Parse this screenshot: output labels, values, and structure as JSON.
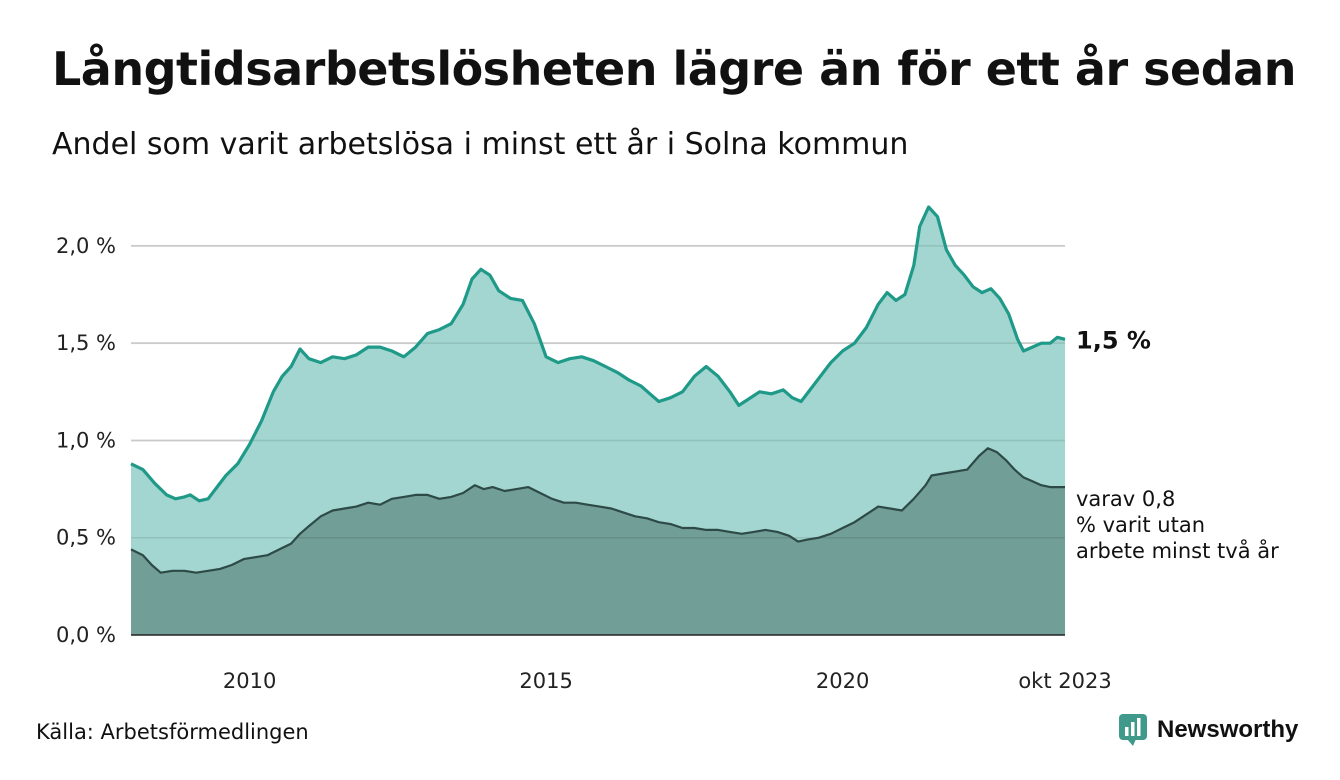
{
  "header": {
    "title": "Långtidsarbetslösheten lägre än för ett år sedan",
    "subtitle": "Andel som varit arbetslösa i minst ett år i Solna kommun"
  },
  "chart_data": {
    "type": "area",
    "title": "Långtidsarbetslösheten lägre än för ett år sedan",
    "subtitle": "Andel som varit arbetslösa i minst ett år i Solna kommun",
    "xlabel": "",
    "ylabel": "",
    "x_ticks": [
      {
        "label": "2010",
        "t": 2010.0
      },
      {
        "label": "2015",
        "t": 2015.0
      },
      {
        "label": "2020",
        "t": 2020.0
      },
      {
        "label": "okt 2023",
        "t": 2023.75
      }
    ],
    "y_ticks": [
      {
        "label": "0,0 %",
        "value": 0.0
      },
      {
        "label": "0,5 %",
        "value": 0.5
      },
      {
        "label": "1,0 %",
        "value": 1.0
      },
      {
        "label": "1,5 %",
        "value": 1.5
      },
      {
        "label": "2,0 %",
        "value": 2.0
      }
    ],
    "xlim": [
      2008.0,
      2023.75
    ],
    "ylim": [
      0,
      2.2
    ],
    "grid": true,
    "series": [
      {
        "name": "Arbetslösa minst ett år",
        "color": "#1f9988",
        "fill": "#a3d6d0",
        "end_label": "1,5 %",
        "points": [
          [
            2008.0,
            0.88
          ],
          [
            2008.2,
            0.85
          ],
          [
            2008.4,
            0.78
          ],
          [
            2008.6,
            0.72
          ],
          [
            2008.75,
            0.7
          ],
          [
            2008.9,
            0.71
          ],
          [
            2009.0,
            0.72
          ],
          [
            2009.15,
            0.69
          ],
          [
            2009.3,
            0.7
          ],
          [
            2009.45,
            0.76
          ],
          [
            2009.6,
            0.82
          ],
          [
            2009.8,
            0.88
          ],
          [
            2010.0,
            0.98
          ],
          [
            2010.2,
            1.1
          ],
          [
            2010.4,
            1.25
          ],
          [
            2010.55,
            1.33
          ],
          [
            2010.7,
            1.38
          ],
          [
            2010.85,
            1.47
          ],
          [
            2011.0,
            1.42
          ],
          [
            2011.2,
            1.4
          ],
          [
            2011.4,
            1.43
          ],
          [
            2011.6,
            1.42
          ],
          [
            2011.8,
            1.44
          ],
          [
            2012.0,
            1.48
          ],
          [
            2012.2,
            1.48
          ],
          [
            2012.4,
            1.46
          ],
          [
            2012.6,
            1.43
          ],
          [
            2012.8,
            1.48
          ],
          [
            2013.0,
            1.55
          ],
          [
            2013.2,
            1.57
          ],
          [
            2013.4,
            1.6
          ],
          [
            2013.6,
            1.7
          ],
          [
            2013.75,
            1.83
          ],
          [
            2013.9,
            1.88
          ],
          [
            2014.05,
            1.85
          ],
          [
            2014.2,
            1.77
          ],
          [
            2014.4,
            1.73
          ],
          [
            2014.6,
            1.72
          ],
          [
            2014.8,
            1.6
          ],
          [
            2015.0,
            1.43
          ],
          [
            2015.2,
            1.4
          ],
          [
            2015.4,
            1.42
          ],
          [
            2015.6,
            1.43
          ],
          [
            2015.8,
            1.41
          ],
          [
            2016.0,
            1.38
          ],
          [
            2016.2,
            1.35
          ],
          [
            2016.4,
            1.31
          ],
          [
            2016.6,
            1.28
          ],
          [
            2016.75,
            1.24
          ],
          [
            2016.9,
            1.2
          ],
          [
            2017.1,
            1.22
          ],
          [
            2017.3,
            1.25
          ],
          [
            2017.5,
            1.33
          ],
          [
            2017.7,
            1.38
          ],
          [
            2017.9,
            1.33
          ],
          [
            2018.1,
            1.25
          ],
          [
            2018.25,
            1.18
          ],
          [
            2018.4,
            1.21
          ],
          [
            2018.6,
            1.25
          ],
          [
            2018.8,
            1.24
          ],
          [
            2019.0,
            1.26
          ],
          [
            2019.15,
            1.22
          ],
          [
            2019.3,
            1.2
          ],
          [
            2019.45,
            1.26
          ],
          [
            2019.6,
            1.32
          ],
          [
            2019.8,
            1.4
          ],
          [
            2020.0,
            1.46
          ],
          [
            2020.2,
            1.5
          ],
          [
            2020.4,
            1.58
          ],
          [
            2020.6,
            1.7
          ],
          [
            2020.75,
            1.76
          ],
          [
            2020.9,
            1.72
          ],
          [
            2021.05,
            1.75
          ],
          [
            2021.2,
            1.9
          ],
          [
            2021.3,
            2.1
          ],
          [
            2021.45,
            2.2
          ],
          [
            2021.6,
            2.15
          ],
          [
            2021.75,
            1.98
          ],
          [
            2021.9,
            1.9
          ],
          [
            2022.05,
            1.85
          ],
          [
            2022.2,
            1.79
          ],
          [
            2022.35,
            1.76
          ],
          [
            2022.5,
            1.78
          ],
          [
            2022.65,
            1.73
          ],
          [
            2022.8,
            1.65
          ],
          [
            2022.95,
            1.52
          ],
          [
            2023.05,
            1.46
          ],
          [
            2023.2,
            1.48
          ],
          [
            2023.35,
            1.5
          ],
          [
            2023.5,
            1.5
          ],
          [
            2023.62,
            1.53
          ],
          [
            2023.75,
            1.52
          ]
        ]
      },
      {
        "name": "varav minst två år",
        "color": "#2d4a46",
        "fill": "#729e98",
        "end_label": "varav 0,8 % varit utan arbete minst två år",
        "points": [
          [
            2008.0,
            0.44
          ],
          [
            2008.2,
            0.41
          ],
          [
            2008.35,
            0.36
          ],
          [
            2008.5,
            0.32
          ],
          [
            2008.7,
            0.33
          ],
          [
            2008.9,
            0.33
          ],
          [
            2009.1,
            0.32
          ],
          [
            2009.3,
            0.33
          ],
          [
            2009.5,
            0.34
          ],
          [
            2009.7,
            0.36
          ],
          [
            2009.9,
            0.39
          ],
          [
            2010.1,
            0.4
          ],
          [
            2010.3,
            0.41
          ],
          [
            2010.5,
            0.44
          ],
          [
            2010.7,
            0.47
          ],
          [
            2010.85,
            0.52
          ],
          [
            2011.0,
            0.56
          ],
          [
            2011.2,
            0.61
          ],
          [
            2011.4,
            0.64
          ],
          [
            2011.6,
            0.65
          ],
          [
            2011.8,
            0.66
          ],
          [
            2012.0,
            0.68
          ],
          [
            2012.2,
            0.67
          ],
          [
            2012.4,
            0.7
          ],
          [
            2012.6,
            0.71
          ],
          [
            2012.8,
            0.72
          ],
          [
            2013.0,
            0.72
          ],
          [
            2013.2,
            0.7
          ],
          [
            2013.4,
            0.71
          ],
          [
            2013.6,
            0.73
          ],
          [
            2013.8,
            0.77
          ],
          [
            2013.95,
            0.75
          ],
          [
            2014.1,
            0.76
          ],
          [
            2014.3,
            0.74
          ],
          [
            2014.5,
            0.75
          ],
          [
            2014.7,
            0.76
          ],
          [
            2014.9,
            0.73
          ],
          [
            2015.1,
            0.7
          ],
          [
            2015.3,
            0.68
          ],
          [
            2015.5,
            0.68
          ],
          [
            2015.7,
            0.67
          ],
          [
            2015.9,
            0.66
          ],
          [
            2016.1,
            0.65
          ],
          [
            2016.3,
            0.63
          ],
          [
            2016.5,
            0.61
          ],
          [
            2016.7,
            0.6
          ],
          [
            2016.9,
            0.58
          ],
          [
            2017.1,
            0.57
          ],
          [
            2017.3,
            0.55
          ],
          [
            2017.5,
            0.55
          ],
          [
            2017.7,
            0.54
          ],
          [
            2017.9,
            0.54
          ],
          [
            2018.1,
            0.53
          ],
          [
            2018.3,
            0.52
          ],
          [
            2018.5,
            0.53
          ],
          [
            2018.7,
            0.54
          ],
          [
            2018.9,
            0.53
          ],
          [
            2019.1,
            0.51
          ],
          [
            2019.25,
            0.48
          ],
          [
            2019.4,
            0.49
          ],
          [
            2019.6,
            0.5
          ],
          [
            2019.8,
            0.52
          ],
          [
            2020.0,
            0.55
          ],
          [
            2020.2,
            0.58
          ],
          [
            2020.4,
            0.62
          ],
          [
            2020.6,
            0.66
          ],
          [
            2020.8,
            0.65
          ],
          [
            2021.0,
            0.64
          ],
          [
            2021.2,
            0.7
          ],
          [
            2021.4,
            0.77
          ],
          [
            2021.5,
            0.82
          ],
          [
            2021.7,
            0.83
          ],
          [
            2021.9,
            0.84
          ],
          [
            2022.1,
            0.85
          ],
          [
            2022.3,
            0.92
          ],
          [
            2022.45,
            0.96
          ],
          [
            2022.6,
            0.94
          ],
          [
            2022.75,
            0.9
          ],
          [
            2022.9,
            0.85
          ],
          [
            2023.05,
            0.81
          ],
          [
            2023.2,
            0.79
          ],
          [
            2023.35,
            0.77
          ],
          [
            2023.5,
            0.76
          ],
          [
            2023.62,
            0.76
          ],
          [
            2023.75,
            0.76
          ]
        ]
      }
    ]
  },
  "footer": {
    "source": "Källa: Arbetsförmedlingen",
    "brand": "Newsworthy"
  }
}
